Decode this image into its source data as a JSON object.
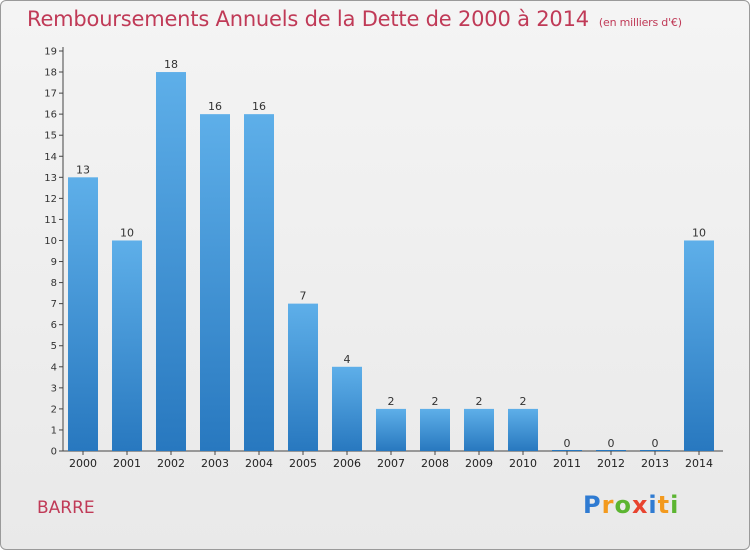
{
  "header": {
    "title": "Remboursements Annuels de la Dette de 2000 à 2014",
    "subtitle": "(en milliers d'€)"
  },
  "footer": {
    "commune": "BARRE",
    "logo_letters": [
      {
        "ch": "P",
        "color": "#2f7bd2"
      },
      {
        "ch": "r",
        "color": "#f39a1e"
      },
      {
        "ch": "o",
        "color": "#5cb531"
      },
      {
        "ch": "x",
        "color": "#e8432f"
      },
      {
        "ch": "i",
        "color": "#2f7bd2"
      },
      {
        "ch": "t",
        "color": "#f39a1e"
      },
      {
        "ch": "i",
        "color": "#5cb531"
      }
    ]
  },
  "colors": {
    "bar_top": "#5eafe9",
    "bar_bottom": "#2878bf"
  },
  "chart_data": {
    "type": "bar",
    "title": "Remboursements Annuels de la Dette de 2000 à 2014",
    "subtitle": "(en milliers d'€)",
    "xlabel": "",
    "ylabel": "",
    "ylim": [
      0,
      19
    ],
    "yticks": [
      0,
      1,
      2,
      3,
      4,
      5,
      6,
      7,
      8,
      9,
      10,
      11,
      12,
      13,
      14,
      15,
      16,
      17,
      18,
      19
    ],
    "categories": [
      "2000",
      "2001",
      "2002",
      "2003",
      "2004",
      "2005",
      "2006",
      "2007",
      "2008",
      "2009",
      "2010",
      "2011",
      "2012",
      "2013",
      "2014"
    ],
    "values": [
      13,
      10,
      18,
      16,
      16,
      7,
      4,
      2,
      2,
      2,
      2,
      0,
      0,
      0,
      10
    ],
    "grid": false,
    "legend": "none"
  }
}
